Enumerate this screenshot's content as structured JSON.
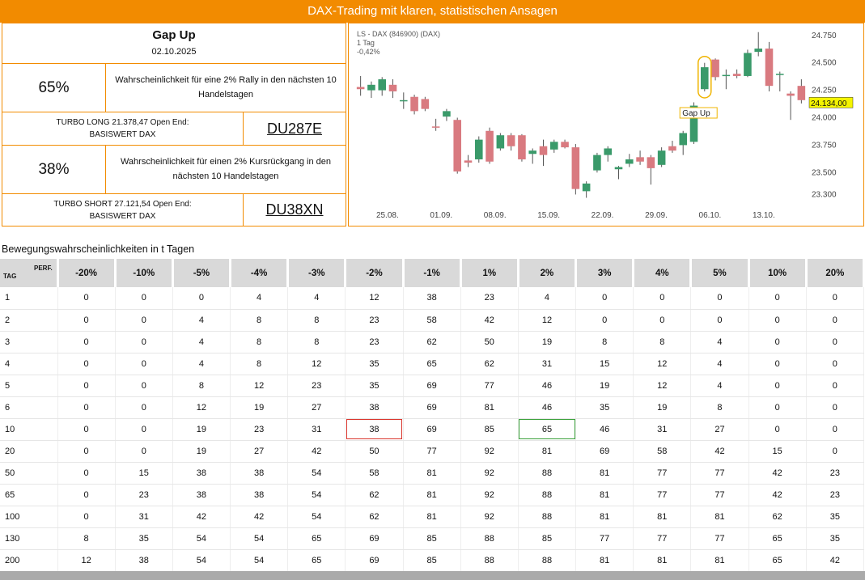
{
  "header": {
    "title": "DAX-Trading mit klaren, statistischen Ansagen"
  },
  "signal": {
    "title": "Gap Up",
    "date": "02.10.2025"
  },
  "long": {
    "probability": "65%",
    "description": "Wahrscheinlichkeit für eine 2% Rally in den nächsten 10 Handelstagen",
    "product_line1": "TURBO LONG 21.378,47 Open End:",
    "product_line2": "BASISWERT DAX",
    "wkn": "DU287E"
  },
  "short": {
    "probability": "38%",
    "description": "Wahrscheinlichkeit für einen 2% Kursrückgang in den nächsten 10 Handelstagen",
    "product_line1": "TURBO SHORT 27.121,54 Open End:",
    "product_line2": "BASISWERT DAX",
    "wkn": "DU38XN"
  },
  "chart_data": {
    "type": "candlestick",
    "title": "LS - DAX (846900) (DAX)",
    "subtitle_line1": "1 Tag",
    "subtitle_line2": "-0,42%",
    "ylim": [
      23200,
      24800
    ],
    "y_ticks": [
      "24.750",
      "24.500",
      "24.250",
      "24.000",
      "23.750",
      "23.500",
      "23.300"
    ],
    "y_tick_values": [
      24750,
      24500,
      24250,
      24000,
      23750,
      23500,
      23300
    ],
    "x_tick_labels": [
      "25.08.",
      "01.09.",
      "08.09.",
      "15.09.",
      "22.09.",
      "29.09.",
      "06.10.",
      "13.10."
    ],
    "x_tick_index": [
      2.5,
      7.5,
      12.5,
      17.5,
      22.5,
      27.5,
      32.5,
      37.5
    ],
    "last_price_label": "24.134,00",
    "last_price": 24134,
    "annotation": {
      "text": "Gap Up",
      "index": 30
    },
    "up_color": "#3a9a6a",
    "down_color": "#d97a80",
    "candles": [
      {
        "o": 24280,
        "h": 24380,
        "l": 24200,
        "c": 24260
      },
      {
        "o": 24250,
        "h": 24330,
        "l": 24180,
        "c": 24300
      },
      {
        "o": 24250,
        "h": 24370,
        "l": 24200,
        "c": 24350
      },
      {
        "o": 24300,
        "h": 24350,
        "l": 24180,
        "c": 24240
      },
      {
        "o": 24160,
        "h": 24230,
        "l": 24080,
        "c": 24160
      },
      {
        "o": 24190,
        "h": 24210,
        "l": 24030,
        "c": 24060
      },
      {
        "o": 24170,
        "h": 24190,
        "l": 24060,
        "c": 24080
      },
      {
        "o": 23920,
        "h": 23990,
        "l": 23880,
        "c": 23910
      },
      {
        "o": 24010,
        "h": 24080,
        "l": 23970,
        "c": 24060
      },
      {
        "o": 23980,
        "h": 24000,
        "l": 23490,
        "c": 23510
      },
      {
        "o": 23610,
        "h": 23660,
        "l": 23550,
        "c": 23590
      },
      {
        "o": 23620,
        "h": 23830,
        "l": 23590,
        "c": 23800
      },
      {
        "o": 23880,
        "h": 23910,
        "l": 23580,
        "c": 23600
      },
      {
        "o": 23720,
        "h": 23860,
        "l": 23700,
        "c": 23840
      },
      {
        "o": 23840,
        "h": 23860,
        "l": 23700,
        "c": 23740
      },
      {
        "o": 23840,
        "h": 23850,
        "l": 23600,
        "c": 23620
      },
      {
        "o": 23670,
        "h": 23720,
        "l": 23580,
        "c": 23700
      },
      {
        "o": 23740,
        "h": 23800,
        "l": 23560,
        "c": 23660
      },
      {
        "o": 23710,
        "h": 23800,
        "l": 23680,
        "c": 23780
      },
      {
        "o": 23780,
        "h": 23800,
        "l": 23720,
        "c": 23730
      },
      {
        "o": 23730,
        "h": 23760,
        "l": 23300,
        "c": 23350
      },
      {
        "o": 23330,
        "h": 23420,
        "l": 23270,
        "c": 23400
      },
      {
        "o": 23520,
        "h": 23680,
        "l": 23500,
        "c": 23660
      },
      {
        "o": 23660,
        "h": 23740,
        "l": 23600,
        "c": 23720
      },
      {
        "o": 23530,
        "h": 23560,
        "l": 23440,
        "c": 23550
      },
      {
        "o": 23580,
        "h": 23670,
        "l": 23550,
        "c": 23620
      },
      {
        "o": 23640,
        "h": 23700,
        "l": 23570,
        "c": 23600
      },
      {
        "o": 23640,
        "h": 23660,
        "l": 23390,
        "c": 23540
      },
      {
        "o": 23570,
        "h": 23730,
        "l": 23550,
        "c": 23700
      },
      {
        "o": 23740,
        "h": 23790,
        "l": 23680,
        "c": 23700
      },
      {
        "o": 23750,
        "h": 23880,
        "l": 23660,
        "c": 23860
      },
      {
        "o": 23780,
        "h": 24140,
        "l": 23760,
        "c": 24110
      },
      {
        "o": 24260,
        "h": 24500,
        "l": 24240,
        "c": 24460
      },
      {
        "o": 24530,
        "h": 24540,
        "l": 24340,
        "c": 24370
      },
      {
        "o": 24380,
        "h": 24440,
        "l": 24260,
        "c": 24390
      },
      {
        "o": 24400,
        "h": 24440,
        "l": 24360,
        "c": 24380
      },
      {
        "o": 24380,
        "h": 24620,
        "l": 24370,
        "c": 24590
      },
      {
        "o": 24600,
        "h": 24780,
        "l": 24560,
        "c": 24630
      },
      {
        "o": 24630,
        "h": 24690,
        "l": 24240,
        "c": 24290
      },
      {
        "o": 24400,
        "h": 24420,
        "l": 24240,
        "c": 24400
      },
      {
        "o": 24220,
        "h": 24240,
        "l": 23980,
        "c": 24200
      },
      {
        "o": 24290,
        "h": 24350,
        "l": 24130,
        "c": 24160
      }
    ]
  },
  "table": {
    "title": "Bewegungswahrscheinlichkeiten in t Tagen",
    "corner_tag": "TAG",
    "corner_perf": "PERF.",
    "columns": [
      "-20%",
      "-10%",
      "-5%",
      "-4%",
      "-3%",
      "-2%",
      "-1%",
      "1%",
      "2%",
      "3%",
      "4%",
      "5%",
      "10%",
      "20%"
    ],
    "highlight": {
      "row": "10",
      "red_col": "-2%",
      "green_col": "2%",
      "red_color": "#d9342b",
      "green_color": "#3aa13a"
    },
    "rows": [
      {
        "tag": "1",
        "values": [
          "0",
          "0",
          "0",
          "4",
          "4",
          "12",
          "38",
          "23",
          "4",
          "0",
          "0",
          "0",
          "0",
          "0"
        ]
      },
      {
        "tag": "2",
        "values": [
          "0",
          "0",
          "4",
          "8",
          "8",
          "23",
          "58",
          "42",
          "12",
          "0",
          "0",
          "0",
          "0",
          "0"
        ]
      },
      {
        "tag": "3",
        "values": [
          "0",
          "0",
          "4",
          "8",
          "8",
          "23",
          "62",
          "50",
          "19",
          "8",
          "8",
          "4",
          "0",
          "0"
        ]
      },
      {
        "tag": "4",
        "values": [
          "0",
          "0",
          "4",
          "8",
          "12",
          "35",
          "65",
          "62",
          "31",
          "15",
          "12",
          "4",
          "0",
          "0"
        ]
      },
      {
        "tag": "5",
        "values": [
          "0",
          "0",
          "8",
          "12",
          "23",
          "35",
          "69",
          "77",
          "46",
          "19",
          "12",
          "4",
          "0",
          "0"
        ]
      },
      {
        "tag": "6",
        "values": [
          "0",
          "0",
          "12",
          "19",
          "27",
          "38",
          "69",
          "81",
          "46",
          "35",
          "19",
          "8",
          "0",
          "0"
        ]
      },
      {
        "tag": "10",
        "values": [
          "0",
          "0",
          "19",
          "23",
          "31",
          "38",
          "69",
          "85",
          "65",
          "46",
          "31",
          "27",
          "0",
          "0"
        ]
      },
      {
        "tag": "20",
        "values": [
          "0",
          "0",
          "19",
          "27",
          "42",
          "50",
          "77",
          "92",
          "81",
          "69",
          "58",
          "42",
          "15",
          "0"
        ]
      },
      {
        "tag": "50",
        "values": [
          "0",
          "15",
          "38",
          "38",
          "54",
          "58",
          "81",
          "92",
          "88",
          "81",
          "77",
          "77",
          "42",
          "23"
        ]
      },
      {
        "tag": "65",
        "values": [
          "0",
          "23",
          "38",
          "38",
          "54",
          "62",
          "81",
          "92",
          "88",
          "81",
          "77",
          "77",
          "42",
          "23"
        ]
      },
      {
        "tag": "100",
        "values": [
          "0",
          "31",
          "42",
          "42",
          "54",
          "62",
          "81",
          "92",
          "88",
          "81",
          "81",
          "81",
          "62",
          "35"
        ]
      },
      {
        "tag": "130",
        "values": [
          "8",
          "35",
          "54",
          "54",
          "65",
          "69",
          "85",
          "88",
          "85",
          "77",
          "77",
          "77",
          "65",
          "35"
        ]
      },
      {
        "tag": "200",
        "values": [
          "12",
          "38",
          "54",
          "54",
          "65",
          "69",
          "85",
          "88",
          "88",
          "81",
          "81",
          "81",
          "65",
          "42"
        ]
      }
    ]
  }
}
